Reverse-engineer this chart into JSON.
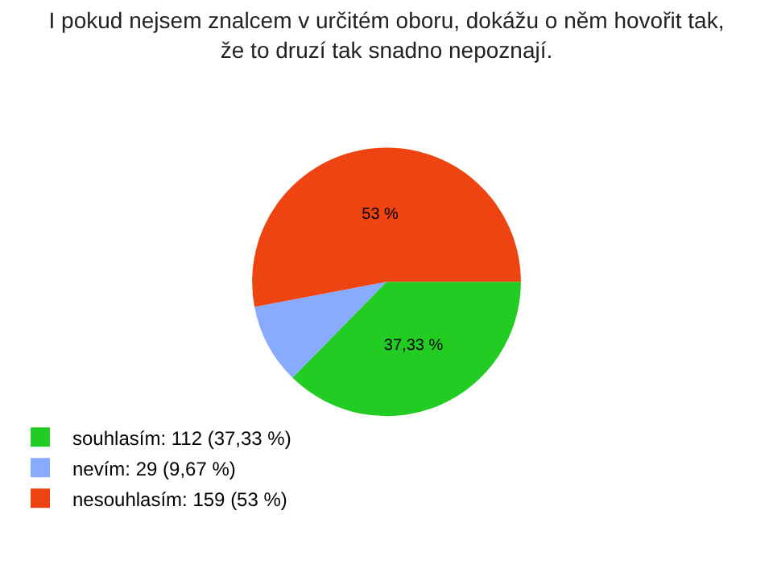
{
  "chart_data": {
    "type": "pie",
    "title": "I pokud nejsem znalcem v určitém oboru, dokážu o něm hovořit tak,\nže to druzí tak snadno nepoznají.",
    "categories": [
      "souhlasím: 112 (37,33 %)",
      "nevím: 29 (9,67 %)",
      "nesouhlasím: 159 (53 %)"
    ],
    "values": [
      37.33,
      9.67,
      53
    ],
    "colors": [
      "#22cc22",
      "#88aaff",
      "#ee4411"
    ],
    "value_labels": [
      "37,33 %",
      null,
      "53 %"
    ],
    "legend": "bottom left"
  }
}
